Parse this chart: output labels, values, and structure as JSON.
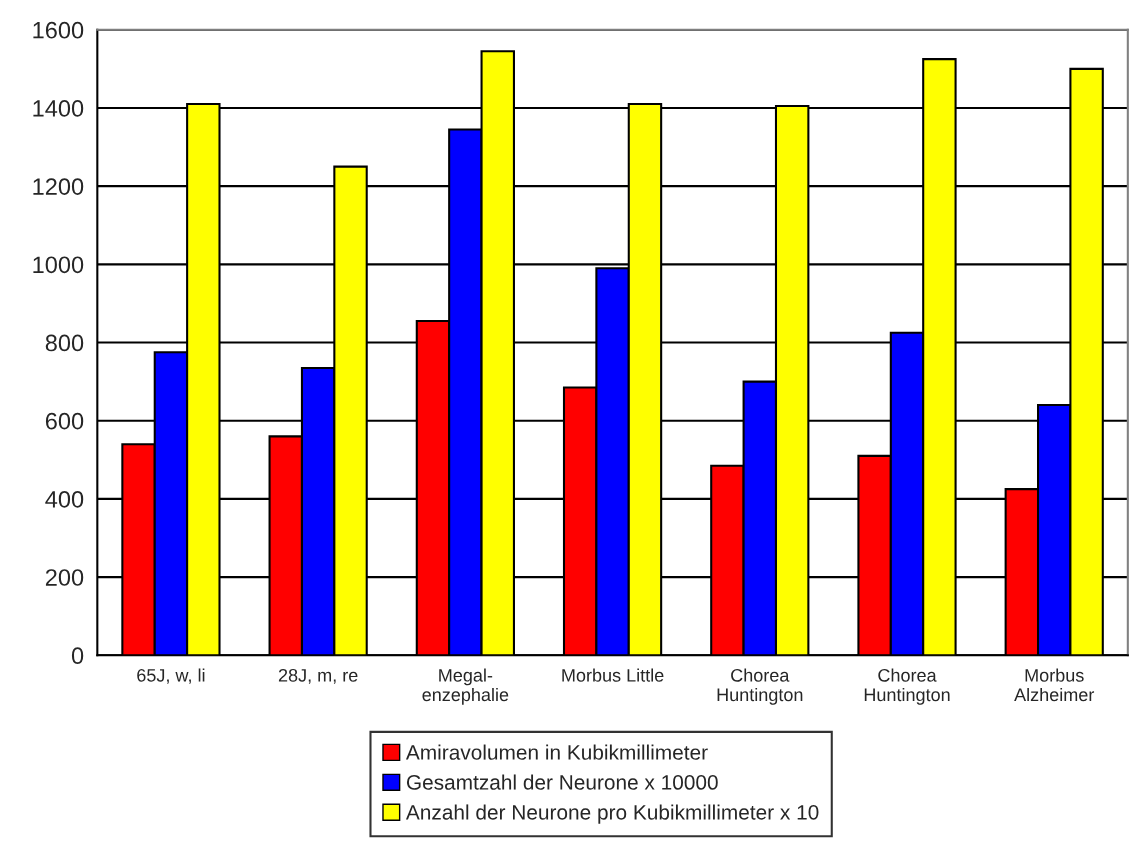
{
  "chart_data": {
    "type": "bar",
    "categories": [
      "65J, w, li",
      "28J, m, re",
      "Megal-\nenzephalie",
      "Morbus Little",
      "Chorea\nHuntington",
      "Chorea\nHuntington",
      "Morbus\nAlzheimer"
    ],
    "series": [
      {
        "name": "Amiravolumen in Kubikmillimeter",
        "color": "#ff0000",
        "values": [
          540,
          560,
          855,
          685,
          485,
          510,
          425
        ]
      },
      {
        "name": "Gesamtzahl der Neurone x 10000",
        "color": "#0000ff",
        "values": [
          775,
          735,
          1345,
          990,
          700,
          825,
          640
        ]
      },
      {
        "name": "Anzahl der Neurone pro Kubikmillimeter x 10",
        "color": "#ffff00",
        "values": [
          1410,
          1250,
          1545,
          1410,
          1405,
          1525,
          1500
        ]
      }
    ],
    "ylim": [
      0,
      1600
    ],
    "yticks": [
      0,
      200,
      400,
      600,
      800,
      1000,
      1200,
      1400,
      1600
    ],
    "grid": "y",
    "legend": "bottom"
  }
}
